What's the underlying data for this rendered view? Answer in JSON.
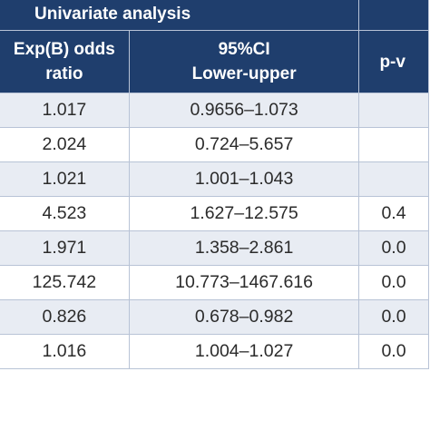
{
  "header": {
    "group_label": "Univariate analysis",
    "col_or_line1": "Exp(B) odds",
    "col_or_line2": "ratio",
    "col_ci_line1": "95%CI",
    "col_ci_line2": "Lower-upper",
    "col_p": "p-v"
  },
  "rows": [
    {
      "or": "1.017",
      "ci": "0.9656–1.073",
      "p": ""
    },
    {
      "or": "2.024",
      "ci": "0.724–5.657",
      "p": ""
    },
    {
      "or": "1.021",
      "ci": "1.001–1.043",
      "p": ""
    },
    {
      "or": "4.523",
      "ci": "1.627–12.575",
      "p": "0.4"
    },
    {
      "or": "1.971",
      "ci": "1.358–2.861",
      "p": "0.0"
    },
    {
      "or": "125.742",
      "ci": "10.773–1467.616",
      "p": "0.0"
    },
    {
      "or": "0.826",
      "ci": "0.678–0.982",
      "p": "0.0"
    },
    {
      "or": "1.016",
      "ci": "1.004–1.027",
      "p": "0.0"
    }
  ],
  "colors": {
    "header_bg": "#1f3e6d",
    "stripe_bg": "#e8ecf3",
    "border": "#b8c3d6"
  }
}
